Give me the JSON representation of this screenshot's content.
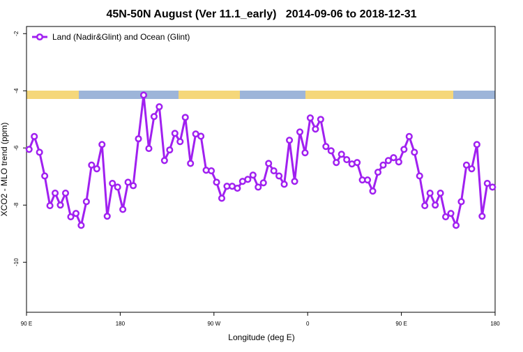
{
  "chart_data": {
    "type": "line",
    "title": "45N-50N August (Ver 11.1_early)   2014-09-06 to 2018-12-31",
    "x_label": "Longitude (deg E)",
    "y_label": "XCO2 - MLO trend (ppm)",
    "x": [
      92.5,
      97.5,
      102.5,
      107.5,
      112.5,
      117.5,
      122.5,
      127.5,
      132.5,
      137.5,
      142.5,
      147.5,
      152.5,
      157.5,
      162.5,
      167.5,
      172.5,
      177.5,
      182.5,
      187.5,
      192.5,
      197.5,
      202.5,
      207.5,
      212.5,
      217.5,
      222.5,
      227.5,
      232.5,
      237.5,
      242.5,
      247.5,
      252.5,
      257.5,
      262.5,
      267.5,
      272.5,
      277.5,
      282.5,
      287.5,
      292.5,
      297.5,
      302.5,
      307.5,
      312.5,
      317.5,
      322.5,
      327.5,
      332.5,
      337.5,
      342.5,
      347.5,
      352.5,
      357.5,
      362.5,
      367.5,
      372.5,
      377.5,
      382.5,
      387.5,
      392.5,
      397.5,
      402.5,
      407.5,
      412.5,
      417.5,
      422.5,
      427.5,
      432.5,
      437.5,
      442.5,
      447.5,
      452.5,
      457.5,
      462.5,
      467.5,
      472.5,
      477.5,
      482.5,
      487.5,
      492.5,
      497.5,
      502.5,
      507.5,
      512.5,
      517.5,
      522.5,
      527.5,
      532.5,
      537.5
    ],
    "series": [
      {
        "name": "Land (Nadir&Glint) and Ocean (Glint)",
        "color": "#a020f0",
        "values": [
          -6.05,
          -5.6,
          -6.15,
          -6.98,
          -8.02,
          -7.58,
          -8.0,
          -7.58,
          -8.41,
          -8.29,
          -8.71,
          -7.88,
          -6.6,
          -6.73,
          -5.88,
          -8.39,
          -7.24,
          -7.37,
          -8.15,
          -7.2,
          -7.32,
          -5.68,
          -4.15,
          -6.02,
          -4.9,
          -4.56,
          -6.44,
          -6.07,
          -5.49,
          -5.78,
          -4.93,
          -6.54,
          -5.51,
          -5.59,
          -6.78,
          -6.8,
          -7.2,
          -7.76,
          -7.34,
          -7.34,
          -7.41,
          -7.17,
          -7.1,
          -6.95,
          -7.37,
          -7.22,
          -6.54,
          -6.8,
          -6.98,
          -7.27,
          -5.73,
          -7.17,
          -5.44,
          -6.17,
          -4.95,
          -5.34,
          -5.0,
          -5.95,
          -6.1,
          -6.51,
          -6.22,
          -6.41,
          -6.56,
          -6.51,
          -7.12,
          -7.12,
          -7.51,
          -6.85,
          -6.6,
          -6.44,
          -6.34,
          -6.49,
          -6.05,
          -5.6,
          -6.15,
          -6.98,
          -8.02,
          -7.58,
          -8.0,
          -7.58,
          -8.41,
          -8.29,
          -8.71,
          -7.88,
          -6.6,
          -6.73,
          -5.88,
          -8.39,
          -7.24,
          -7.37
        ]
      }
    ],
    "xlim": [
      90,
      540
    ],
    "xticks": [
      {
        "value": 90,
        "label": "90 E"
      },
      180,
      {
        "value": 270,
        "label": "90 W"
      },
      {
        "value": 360,
        "label": "0"
      },
      {
        "value": 450,
        "label": "90 E"
      },
      180.0001
    ],
    "ylim": [
      -11.75,
      -1.75
    ],
    "yticks": [
      -2,
      -4,
      -6,
      -8,
      -10
    ],
    "legend": "top-left"
  }
}
